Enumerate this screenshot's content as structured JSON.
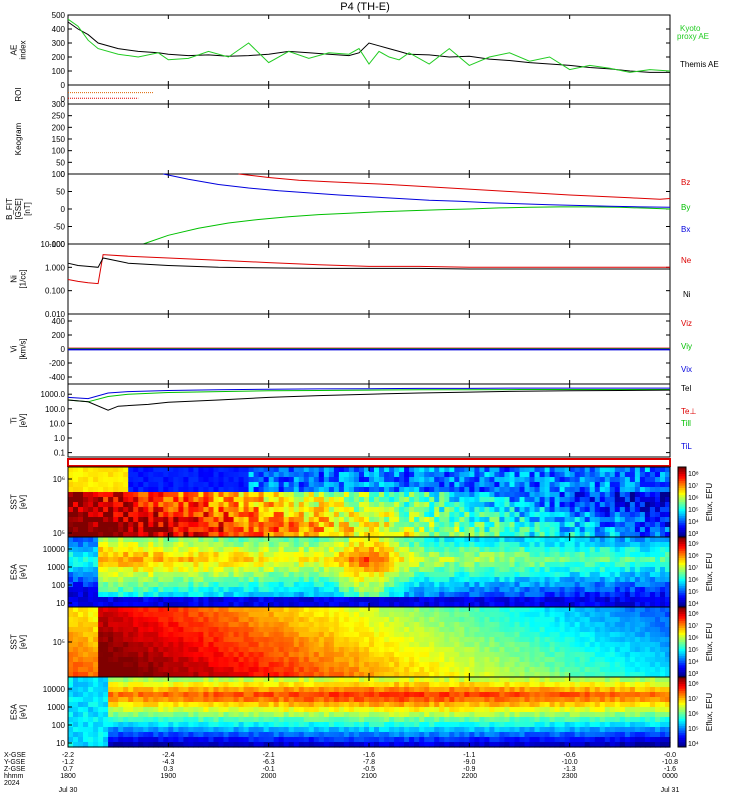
{
  "title": "P4 (TH-E)",
  "colors": {
    "black": "#000000",
    "red": "#dd0000",
    "green": "#00c000",
    "blue": "#0000dd",
    "kyoto": "#22cc22"
  },
  "chart_data": [
    {
      "panel": "ae",
      "type": "line",
      "ylabel": "AE index",
      "ylim": [
        0,
        500
      ],
      "yticks": [
        "500",
        "400",
        "300",
        "200",
        "100",
        "0"
      ],
      "xlim_hours": [
        18,
        24
      ],
      "series": [
        {
          "name": "Themis AE",
          "color": "#000000",
          "x": [
            18.0,
            18.1,
            18.2,
            18.3,
            18.5,
            18.7,
            18.9,
            19.0,
            19.2,
            19.4,
            19.6,
            19.8,
            20.0,
            20.2,
            20.4,
            20.6,
            20.8,
            20.9,
            21.0,
            21.1,
            21.2,
            21.3,
            21.4,
            21.6,
            21.8,
            22.0,
            22.2,
            22.4,
            22.6,
            22.8,
            23.0,
            23.2,
            23.4,
            23.6,
            23.8,
            24.0
          ],
          "y": [
            450,
            400,
            360,
            300,
            260,
            240,
            230,
            220,
            210,
            215,
            205,
            210,
            220,
            240,
            230,
            220,
            210,
            230,
            300,
            280,
            260,
            240,
            220,
            215,
            200,
            205,
            185,
            175,
            160,
            150,
            140,
            125,
            115,
            100,
            90,
            90
          ]
        },
        {
          "name": "Kyoto proxy AE",
          "color": "#22cc22",
          "x": [
            18.0,
            18.1,
            18.2,
            18.3,
            18.5,
            18.7,
            18.9,
            19.0,
            19.2,
            19.4,
            19.6,
            19.8,
            20.0,
            20.2,
            20.4,
            20.6,
            20.8,
            20.9,
            21.0,
            21.1,
            21.2,
            21.3,
            21.4,
            21.6,
            21.8,
            22.0,
            22.2,
            22.4,
            22.6,
            22.8,
            23.0,
            23.2,
            23.4,
            23.6,
            23.8,
            24.0
          ],
          "y": [
            470,
            420,
            320,
            260,
            220,
            200,
            230,
            180,
            190,
            240,
            200,
            300,
            160,
            240,
            190,
            230,
            220,
            260,
            150,
            240,
            200,
            180,
            230,
            150,
            260,
            140,
            200,
            230,
            170,
            200,
            110,
            140,
            120,
            90,
            110,
            100
          ]
        }
      ],
      "legend": [
        "Kyoto",
        "proxy AE",
        "Themis AE"
      ]
    },
    {
      "panel": "roi",
      "type": "line",
      "ylabel": "ROI",
      "yticks": [
        "0"
      ],
      "series": [
        {
          "name": "roi-1",
          "color": "#dd6600",
          "x": [
            18.0,
            18.85
          ],
          "y": [
            0.6,
            0.6
          ]
        },
        {
          "name": "roi-2",
          "color": "#dd0000",
          "x": [
            18.0,
            18.7
          ],
          "y": [
            0.3,
            0.3
          ]
        }
      ]
    },
    {
      "panel": "keogram",
      "type": "heatmap",
      "ylabel": "Keogram",
      "yticks": [
        "300",
        "250",
        "200",
        "150",
        "100",
        "50",
        "0"
      ],
      "ylim": [
        0,
        300
      ]
    },
    {
      "panel": "bfield",
      "type": "line",
      "ylabel": "B_FIT [GSE] [nT]",
      "yticks": [
        "100",
        "50",
        "0",
        "-50",
        "-100"
      ],
      "ylim": [
        -100,
        100
      ],
      "series": [
        {
          "name": "Bz",
          "color": "#dd0000",
          "x": [
            19.7,
            20.0,
            20.3,
            20.6,
            20.9,
            21.2,
            21.5,
            21.8,
            22.1,
            22.4,
            22.7,
            23.0,
            23.3,
            23.6,
            23.9,
            24.0
          ],
          "y": [
            100,
            90,
            82,
            78,
            74,
            70,
            65,
            60,
            55,
            50,
            45,
            40,
            36,
            32,
            28,
            30
          ]
        },
        {
          "name": "By",
          "color": "#00c000",
          "x": [
            18.75,
            19.0,
            19.3,
            19.6,
            19.9,
            20.2,
            20.5,
            20.8,
            21.1,
            21.4,
            21.7,
            22.0,
            22.3,
            22.6,
            22.9,
            23.2,
            23.5,
            23.8,
            24.0
          ],
          "y": [
            -100,
            -75,
            -55,
            -40,
            -30,
            -22,
            -16,
            -12,
            -8,
            -5,
            -2,
            0,
            3,
            5,
            6,
            6,
            5,
            2,
            0
          ]
        },
        {
          "name": "Bx",
          "color": "#0000dd",
          "x": [
            18.95,
            19.2,
            19.5,
            19.8,
            20.1,
            20.4,
            20.7,
            21.0,
            21.3,
            21.6,
            21.9,
            22.2,
            22.5,
            22.8,
            23.1,
            23.4,
            23.7,
            24.0
          ],
          "y": [
            100,
            85,
            70,
            60,
            52,
            46,
            40,
            35,
            30,
            25,
            22,
            18,
            15,
            12,
            10,
            8,
            6,
            5
          ]
        }
      ],
      "legend": [
        "Bz",
        "By",
        "Bx"
      ]
    },
    {
      "panel": "density",
      "type": "line",
      "ylabel": "Ni [1/cc]",
      "yticks": [
        "10.000",
        "1.000",
        "0.100",
        "0.010"
      ],
      "scale": "log",
      "ylim": [
        0.01,
        10
      ],
      "series": [
        {
          "name": "Ne",
          "color": "#dd0000",
          "x": [
            18.0,
            18.1,
            18.2,
            18.3,
            18.35,
            18.6,
            19.0,
            19.5,
            20.0,
            20.5,
            21.0,
            21.5,
            22.0,
            22.5,
            23.0,
            23.5,
            24.0
          ],
          "y": [
            0.3,
            0.25,
            0.22,
            0.2,
            3.5,
            3.0,
            2.5,
            2.0,
            1.6,
            1.3,
            1.1,
            1.1,
            1.0,
            1.0,
            1.0,
            1.0,
            1.0
          ]
        },
        {
          "name": "Ni",
          "color": "#000000",
          "x": [
            18.0,
            18.1,
            18.2,
            18.3,
            18.35,
            18.6,
            19.0,
            19.5,
            20.0,
            20.5,
            21.0,
            21.5,
            22.0,
            22.5,
            23.0,
            23.5,
            24.0
          ],
          "y": [
            1.5,
            1.2,
            1.1,
            1.0,
            2.5,
            1.5,
            1.2,
            1.0,
            0.95,
            0.9,
            0.9,
            0.9,
            0.85,
            0.85,
            0.85,
            0.85,
            0.85
          ]
        }
      ],
      "legend": [
        "Ne",
        "Ni"
      ]
    },
    {
      "panel": "velocity",
      "type": "line",
      "ylabel": "Vi [km/s]",
      "yticks": [
        "400",
        "200",
        "0",
        "-200",
        "-400"
      ],
      "ylim": [
        -500,
        500
      ],
      "series": [
        {
          "name": "Viz",
          "color": "#dd0000",
          "x": [
            18.0,
            24.0
          ],
          "y": [
            0,
            0
          ]
        },
        {
          "name": "Viy",
          "color": "#00c000",
          "x": [
            18.0,
            24.0
          ],
          "y": [
            0,
            0
          ]
        },
        {
          "name": "Vix",
          "color": "#0000dd",
          "x": [
            18.0,
            24.0
          ],
          "y": [
            0,
            0
          ]
        }
      ],
      "legend": [
        "Viz",
        "Viy",
        "Vix"
      ]
    },
    {
      "panel": "temperature",
      "type": "line",
      "ylabel": "Ti [eV]",
      "yticks": [
        "1000.0",
        "100.0",
        "10.0",
        "1.0",
        "0.1"
      ],
      "scale": "log",
      "ylim": [
        0.05,
        5000
      ],
      "series": [
        {
          "name": "Teii",
          "color": "#00c000",
          "x": [
            18.0,
            18.2,
            18.4,
            18.6,
            19.0,
            19.5,
            20.0,
            20.5,
            21.0,
            21.5,
            22.0,
            22.5,
            23.0,
            23.5,
            24.0
          ],
          "y": [
            400,
            300,
            700,
            1000,
            1300,
            1500,
            1700,
            1800,
            1900,
            2000,
            2000,
            2100,
            2100,
            2100,
            2100
          ]
        },
        {
          "name": "TiL",
          "color": "#0000dd",
          "x": [
            18.0,
            18.2,
            18.4,
            18.6,
            19.0,
            19.5,
            20.0,
            20.5,
            21.0,
            21.5,
            22.0,
            22.5,
            23.0,
            23.5,
            24.0
          ],
          "y": [
            600,
            500,
            1200,
            1500,
            1800,
            2000,
            2200,
            2300,
            2400,
            2500,
            2500,
            2600,
            2600,
            2600,
            2600
          ]
        },
        {
          "name": "Tel",
          "color": "#000000",
          "x": [
            18.0,
            18.2,
            18.4,
            18.5,
            18.8,
            19.0,
            19.5,
            20.0,
            20.5,
            21.0,
            21.5,
            22.0,
            22.5,
            23.0,
            23.5,
            24.0
          ],
          "y": [
            400,
            300,
            80,
            150,
            200,
            280,
            400,
            600,
            800,
            1000,
            1200,
            1400,
            1600,
            1700,
            1800,
            1900
          ]
        }
      ],
      "legend": [
        "Tel",
        "Te⊥",
        "Till",
        "TiL"
      ]
    },
    {
      "panel": "sst_e",
      "type": "heatmap",
      "ylabel": "SST [eV]",
      "yticks": [
        "10⁶",
        "10⁵"
      ],
      "colorbar_label": "Eflux, EFU",
      "colorbar_ticks": [
        "10⁸",
        "10⁷",
        "10⁶",
        "10⁵",
        "10⁴",
        "10³"
      ]
    },
    {
      "panel": "esa_e",
      "type": "heatmap",
      "ylabel": "ESA [eV]",
      "yticks": [
        "10000",
        "1000",
        "100",
        "10"
      ],
      "colorbar_label": "Eflux, EFU",
      "colorbar_ticks": [
        "10⁹",
        "10⁸",
        "10⁷",
        "10⁶",
        "10⁵",
        "10⁴"
      ]
    },
    {
      "panel": "sst_i",
      "type": "heatmap",
      "ylabel": "SST [eV]",
      "yticks": [
        "10⁵"
      ],
      "colorbar_label": "Eflux, EFU",
      "colorbar_ticks": [
        "10⁸",
        "10⁷",
        "10⁶",
        "10⁵",
        "10⁴",
        "10³"
      ]
    },
    {
      "panel": "esa_i",
      "type": "heatmap",
      "ylabel": "ESA [eV]",
      "yticks": [
        "10000",
        "1000",
        "100",
        "10"
      ],
      "colorbar_label": "Eflux, EFU",
      "colorbar_ticks": [
        "10⁸",
        "10⁷",
        "10⁶",
        "10⁵",
        "10⁴"
      ]
    }
  ],
  "xaxis": {
    "row_labels": [
      "X-GSE",
      "Y-GSE",
      "Z-GSE",
      "hhmm",
      "2024"
    ],
    "columns": [
      {
        "x": "-2.2",
        "y": "-1.2",
        "z": "0.7",
        "t": "1800",
        "d": "Jul 30"
      },
      {
        "x": "-2.4",
        "y": "-4.3",
        "z": "0.3",
        "t": "1900",
        "d": ""
      },
      {
        "x": "-2.1",
        "y": "-6.3",
        "z": "-0.1",
        "t": "2000",
        "d": ""
      },
      {
        "x": "-1.6",
        "y": "-7.8",
        "z": "-0.5",
        "t": "2100",
        "d": ""
      },
      {
        "x": "-1.1",
        "y": "-9.0",
        "z": "-0.9",
        "t": "2200",
        "d": ""
      },
      {
        "x": "-0.6",
        "y": "-10.0",
        "z": "-1.3",
        "t": "2300",
        "d": ""
      },
      {
        "x": "-0.0",
        "y": "-10.8",
        "z": "-1.6",
        "t": "0000",
        "d": "Jul 31"
      }
    ]
  }
}
